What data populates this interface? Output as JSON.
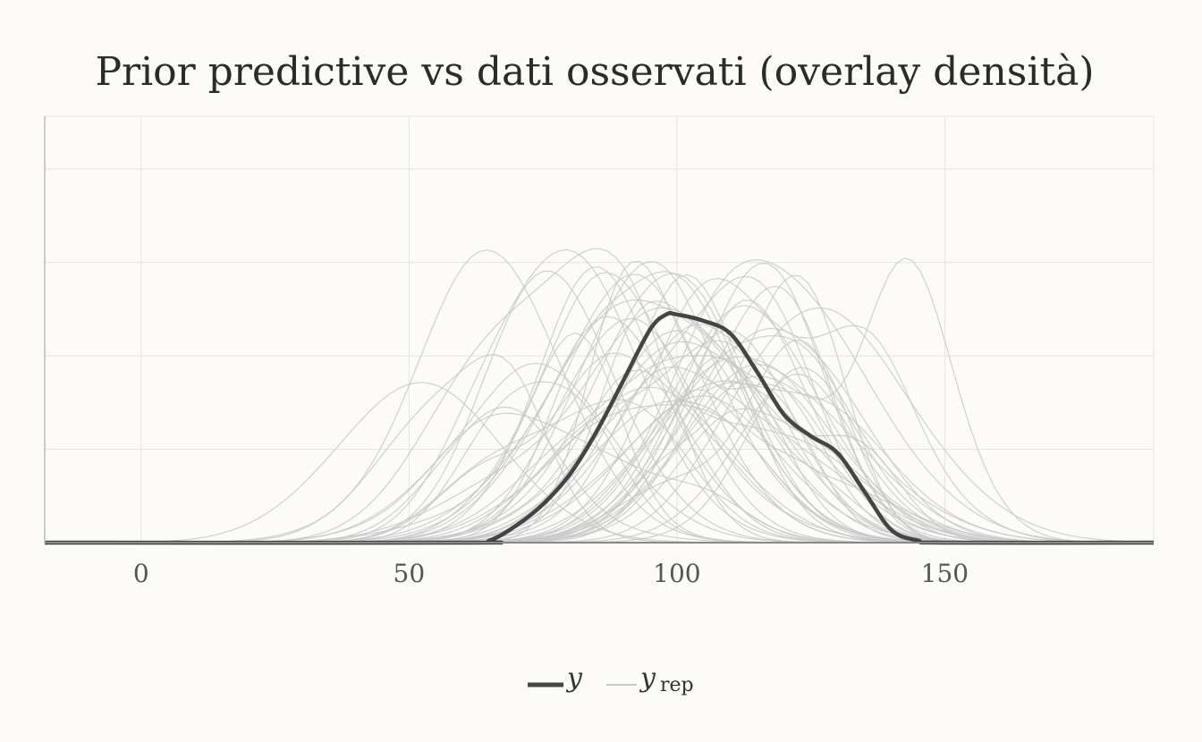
{
  "chart_data": {
    "type": "line",
    "title": "Prior predictive vs dati osservati (overlay densità)",
    "xlabel": "",
    "ylabel": "",
    "xlim": [
      -18,
      189
    ],
    "ylim": [
      0,
      1
    ],
    "x_ticks": [
      0,
      50,
      100,
      150
    ],
    "x_tick_labels": [
      "0",
      "50",
      "100",
      "150"
    ],
    "grid": true,
    "y_tick_labels_shown": false,
    "legend_position": "bottom",
    "legend": [
      {
        "label": "y",
        "subscript": "",
        "color": "#444444"
      },
      {
        "label": "y",
        "subscript": "rep",
        "color": "#c8c8c8"
      }
    ],
    "observed": {
      "name": "y",
      "color": "#444444",
      "x": [
        -18,
        60,
        65,
        70,
        75,
        80,
        85,
        90,
        95,
        98,
        100,
        105,
        110,
        115,
        120,
        125,
        130,
        135,
        140,
        145,
        150,
        189
      ],
      "y": [
        0,
        0,
        0.005,
        0.04,
        0.09,
        0.16,
        0.26,
        0.38,
        0.5,
        0.535,
        0.535,
        0.52,
        0.49,
        0.4,
        0.3,
        0.25,
        0.21,
        0.12,
        0.03,
        0.005,
        0,
        0
      ]
    },
    "replicates": {
      "name": "y_rep",
      "color": "#c8c8c8",
      "count": 60
    }
  }
}
